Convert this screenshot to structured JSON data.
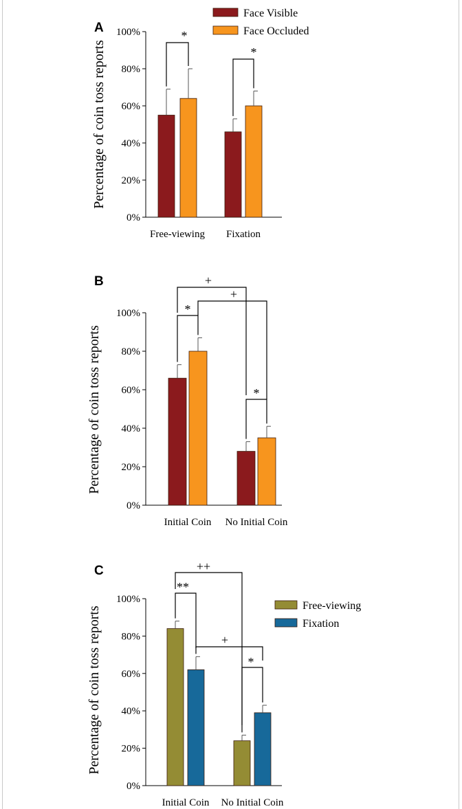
{
  "chart_data": [
    {
      "type": "bar",
      "panel": "A",
      "ylabel": "Percentage of coin toss reports",
      "yticks": [
        "0%",
        "20%",
        "40%",
        "60%",
        "80%",
        "100%"
      ],
      "ylim": [
        0,
        100
      ],
      "categories": [
        "Free-viewing",
        "Fixation"
      ],
      "series": [
        {
          "name": "Face Visible",
          "color": "#8b1a1d",
          "values": [
            55,
            46
          ],
          "errors": [
            14,
            7
          ]
        },
        {
          "name": "Face Occluded",
          "color": "#f7951e",
          "values": [
            64,
            60
          ],
          "errors": [
            16,
            8
          ]
        }
      ],
      "legend": "top-right",
      "annotations": [
        {
          "label": "*",
          "from": [
            0,
            0
          ],
          "to": [
            0,
            1
          ]
        },
        {
          "label": "*",
          "from": [
            1,
            0
          ],
          "to": [
            1,
            1
          ]
        }
      ]
    },
    {
      "type": "bar",
      "panel": "B",
      "ylabel": "Percentage of coin toss reports",
      "yticks": [
        "0%",
        "20%",
        "40%",
        "60%",
        "80%",
        "100%"
      ],
      "ylim": [
        0,
        100
      ],
      "categories": [
        "Initial Coin",
        "No Initial Coin"
      ],
      "series": [
        {
          "name": "Face Visible",
          "color": "#8b1a1d",
          "values": [
            66,
            28
          ],
          "errors": [
            7,
            5
          ]
        },
        {
          "name": "Face Occluded",
          "color": "#f7951e",
          "values": [
            80,
            35
          ],
          "errors": [
            7,
            6
          ]
        }
      ],
      "annotations": [
        {
          "label": "*",
          "from": [
            0,
            0
          ],
          "to": [
            0,
            1
          ]
        },
        {
          "label": "*",
          "from": [
            1,
            0
          ],
          "to": [
            1,
            1
          ]
        },
        {
          "label": "+",
          "from": [
            0,
            0
          ],
          "to": [
            1,
            0
          ]
        },
        {
          "label": "+",
          "from": [
            0,
            1
          ],
          "to": [
            1,
            1
          ]
        }
      ]
    },
    {
      "type": "bar",
      "panel": "C",
      "ylabel": "Percentage of coin toss reports",
      "yticks": [
        "0%",
        "20%",
        "40%",
        "60%",
        "80%",
        "100%"
      ],
      "ylim": [
        0,
        100
      ],
      "categories": [
        "Initial Coin",
        "No Initial Coin"
      ],
      "series": [
        {
          "name": "Free-viewing",
          "color": "#948c34",
          "values": [
            84,
            24
          ],
          "errors": [
            4,
            3
          ]
        },
        {
          "name": "Fixation",
          "color": "#17699a",
          "values": [
            62,
            39
          ],
          "errors": [
            7,
            4
          ]
        }
      ],
      "legend": "right",
      "annotations": [
        {
          "label": "**",
          "from": [
            0,
            0
          ],
          "to": [
            0,
            1
          ]
        },
        {
          "label": "*",
          "from": [
            1,
            0
          ],
          "to": [
            1,
            1
          ]
        },
        {
          "label": "++",
          "from": [
            0,
            0
          ],
          "to": [
            1,
            0
          ]
        },
        {
          "label": "+",
          "from": [
            0,
            1
          ],
          "to": [
            1,
            1
          ]
        }
      ]
    }
  ]
}
